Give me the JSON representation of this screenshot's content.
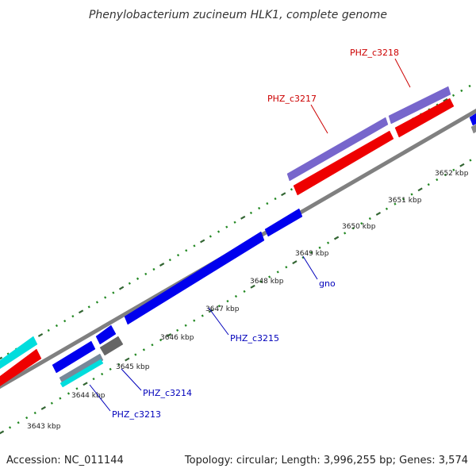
{
  "title": "Phenylobacterium zucineum HLK1, complete genome",
  "footer": {
    "accession": "Accession: NC_011144",
    "summary": "Topology: circular; Length: 3,996,255 bp; Genes: 3,574"
  },
  "colors": {
    "backbone": "#808080",
    "tick_major": "#336633",
    "tick_minor": "#228822",
    "gene_blue": "#0000ee",
    "gene_red": "#ee0000",
    "gene_purple": "#7766cc",
    "gene_cyan": "#00dddd",
    "gene_gray": "#666666",
    "label_blue": "#0000bb",
    "label_red": "#cc0000"
  },
  "scale_ticks": [
    "3643 kbp",
    "3644 kbp",
    "3645 kbp",
    "3646 kbp",
    "3647 kbp",
    "3648 kbp",
    "3649 kbp",
    "3650 kbp",
    "3651 kbp",
    "3652 kbp"
  ],
  "gene_labels": [
    {
      "text": "PHZ_c3218",
      "color": "#cc0000"
    },
    {
      "text": "PHZ_c3217",
      "color": "#cc0000"
    },
    {
      "text": "gno",
      "color": "#0000bb"
    },
    {
      "text": "PHZ_c3215",
      "color": "#0000bb"
    },
    {
      "text": "PHZ_c3214",
      "color": "#0000bb"
    },
    {
      "text": "PHZ_c3213",
      "color": "#0000bb"
    }
  ]
}
